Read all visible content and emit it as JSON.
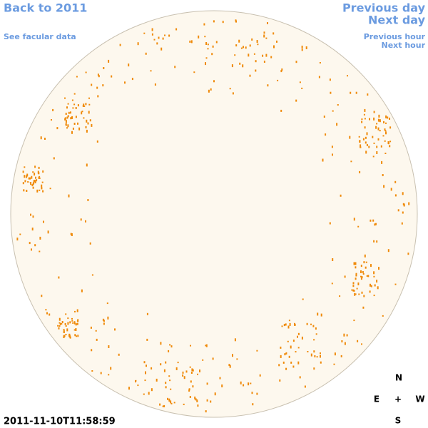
{
  "nav": {
    "back": "Back to 2011",
    "facular": "See facular data",
    "previous_day": "Previous day",
    "next_day": "Next day",
    "previous_hour": "Previous hour",
    "next_hour": "Next hour"
  },
  "timestamp": "2011-11-10T11:58:59",
  "compass": {
    "north": "N",
    "east": "E",
    "center": "+",
    "west": "W",
    "south": "S"
  }
}
